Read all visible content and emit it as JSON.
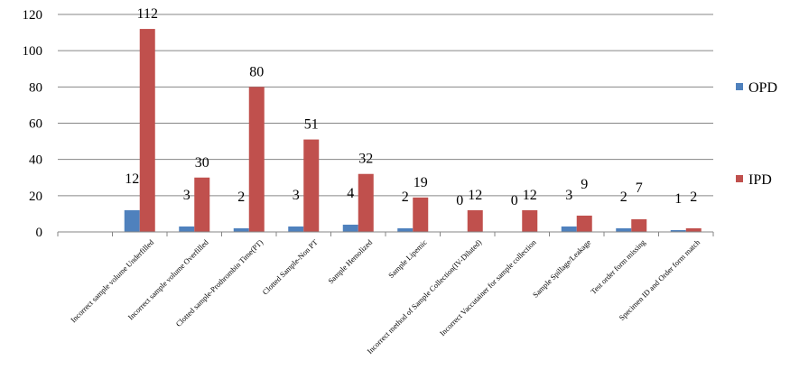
{
  "chart_data": {
    "type": "bar",
    "title": "",
    "xlabel": "",
    "ylabel": "",
    "ylim": [
      0,
      120
    ],
    "yticks": [
      0,
      20,
      40,
      60,
      80,
      100,
      120
    ],
    "grid": "y",
    "legend_position": "right",
    "categories": [
      "",
      "Incorrect sample volume Underfilled",
      "Incorrect sample volume Overfilled",
      "Clotted sample-Prothrombin Time(PT)",
      "Clotted Sample-Non PT",
      "Sample Hemolized",
      "Sample Lipemic",
      "Incorrect method of Sample Collection(IV-Diluted)",
      "Incorrect Vaccutainer for sample collection",
      "Sample Spillage/Leakage",
      "Test order form missing",
      "Specimen ID and Order form match"
    ],
    "series": [
      {
        "name": "OPD",
        "color": "#4f81bd",
        "values": [
          null,
          12,
          3,
          2,
          3,
          4,
          2,
          0,
          0,
          3,
          2,
          1
        ]
      },
      {
        "name": "IPD",
        "color": "#c0504d",
        "values": [
          null,
          112,
          30,
          80,
          51,
          32,
          19,
          12,
          12,
          9,
          7,
          2
        ]
      }
    ]
  }
}
